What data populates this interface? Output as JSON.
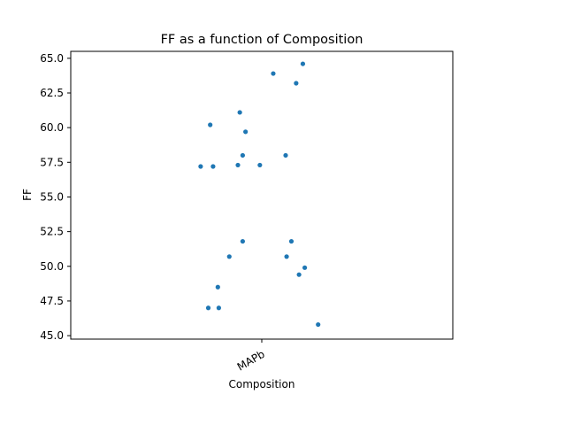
{
  "chart_data": {
    "type": "scatter",
    "title": "FF as a function of Composition",
    "xlabel": "Composition",
    "ylabel": "FF",
    "categories": [
      "MAPb"
    ],
    "ylim": [
      44.75,
      65.5
    ],
    "yticks": [
      45.0,
      47.5,
      50.0,
      52.5,
      55.0,
      57.5,
      60.0,
      62.5,
      65.0
    ],
    "grid": false,
    "point_color": "#1f77b4",
    "series": [
      {
        "category": "MAPb",
        "points": [
          {
            "jitter": -0.64,
            "y": 57.2
          },
          {
            "jitter": -0.56,
            "y": 47.0
          },
          {
            "jitter": -0.54,
            "y": 60.2
          },
          {
            "jitter": -0.51,
            "y": 57.2
          },
          {
            "jitter": -0.46,
            "y": 48.5
          },
          {
            "jitter": -0.45,
            "y": 47.0
          },
          {
            "jitter": -0.34,
            "y": 50.7
          },
          {
            "jitter": -0.25,
            "y": 57.3
          },
          {
            "jitter": -0.23,
            "y": 61.1
          },
          {
            "jitter": -0.2,
            "y": 58.0
          },
          {
            "jitter": -0.2,
            "y": 51.8
          },
          {
            "jitter": -0.17,
            "y": 59.7
          },
          {
            "jitter": -0.02,
            "y": 57.3
          },
          {
            "jitter": 0.12,
            "y": 63.9
          },
          {
            "jitter": 0.25,
            "y": 58.0
          },
          {
            "jitter": 0.26,
            "y": 50.7
          },
          {
            "jitter": 0.31,
            "y": 51.8
          },
          {
            "jitter": 0.36,
            "y": 63.2
          },
          {
            "jitter": 0.39,
            "y": 49.4
          },
          {
            "jitter": 0.43,
            "y": 64.6
          },
          {
            "jitter": 0.45,
            "y": 49.9
          },
          {
            "jitter": 0.59,
            "y": 45.8
          }
        ]
      }
    ]
  }
}
